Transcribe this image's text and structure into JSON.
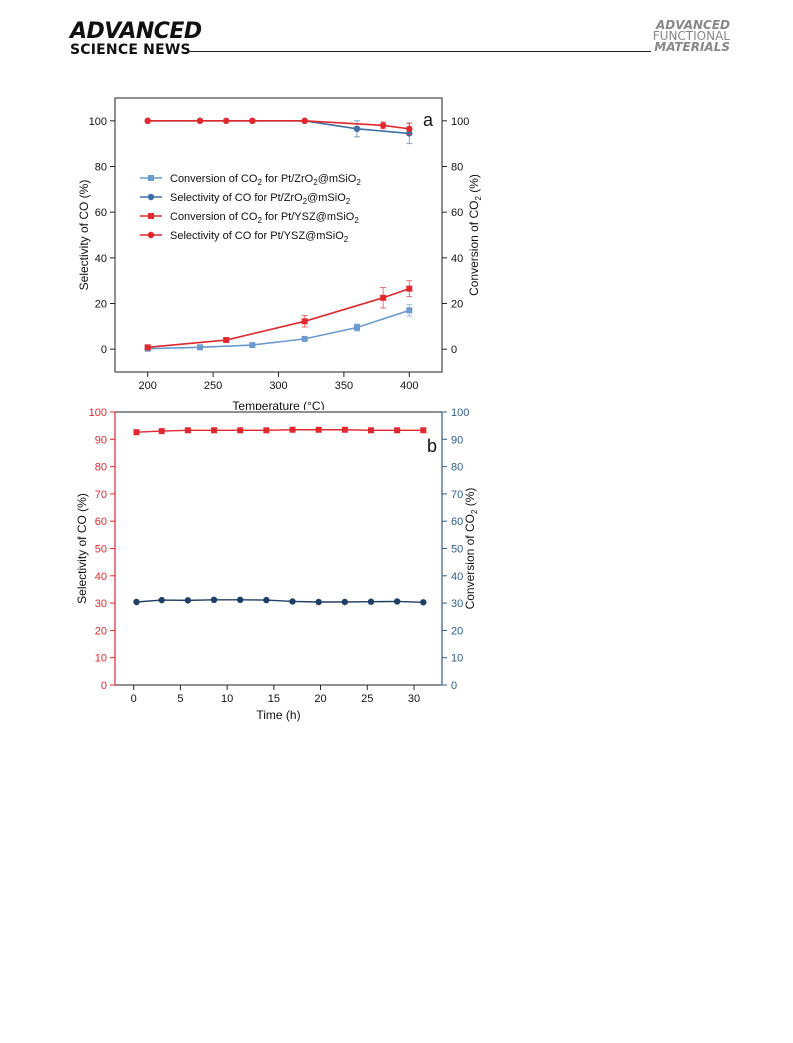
{
  "header": {
    "left_line1": "ADVANCED",
    "left_line2": "SCIENCE NEWS",
    "right_line1": "ADVANCED",
    "right_line2": "FUNCTIONAL",
    "right_line3": "MATERIALS"
  },
  "chart_data": [
    {
      "type": "line",
      "panel_label": "a",
      "xlabel": "Temperature (°C)",
      "ylabel": "Selectivity of CO (%)",
      "y2label": "Conversion of CO2 (%)",
      "xlim": [
        175,
        425
      ],
      "ylim": [
        -10,
        110
      ],
      "x_ticks": [
        200,
        250,
        300,
        350,
        400
      ],
      "y_ticks": [
        0,
        20,
        40,
        60,
        80,
        100
      ],
      "y2_ticks": [
        0,
        20,
        40,
        60,
        80,
        100
      ],
      "legend_position": "center-left",
      "series": [
        {
          "name": "Conversion of CO2 for Pt/ZrO2@mSiO2",
          "legend_parts": [
            [
              "Conversion of CO",
              false
            ],
            [
              "2",
              true
            ],
            [
              " for Pt/ZrO",
              false
            ],
            [
              "2",
              true
            ],
            [
              "@mSiO",
              false
            ],
            [
              "2",
              true
            ]
          ],
          "axis": "right",
          "marker": "square",
          "color": "#6b9ad0",
          "x": [
            200,
            240,
            280,
            320,
            360,
            400
          ],
          "y": [
            0.2,
            0.8,
            1.8,
            4.5,
            9.5,
            17.0
          ],
          "err": [
            0,
            0,
            0,
            0.5,
            1.5,
            2.5
          ]
        },
        {
          "name": "Selectivity of CO for Pt/ZrO2@mSiO2",
          "legend_parts": [
            [
              "Selectivity of CO for Pt/ZrO",
              false
            ],
            [
              "2",
              true
            ],
            [
              "@mSiO",
              false
            ],
            [
              "2",
              true
            ]
          ],
          "axis": "left",
          "marker": "circle",
          "color": "#3d6ea6",
          "x": [
            200,
            240,
            280,
            320,
            360,
            400
          ],
          "y": [
            100,
            100,
            100,
            100,
            96.5,
            94.5
          ],
          "err": [
            0,
            0,
            0,
            0,
            3.5,
            4.5
          ]
        },
        {
          "name": "Conversion of CO2 for Pt/YSZ@mSiO2",
          "legend_parts": [
            [
              "Conversion of CO",
              false
            ],
            [
              "2",
              true
            ],
            [
              " for Pt/YSZ@mSiO",
              false
            ],
            [
              "2",
              true
            ]
          ],
          "axis": "right",
          "marker": "square",
          "color": "#e0282e",
          "x": [
            200,
            260,
            320,
            380,
            400
          ],
          "y": [
            0.8,
            4.0,
            12.2,
            22.5,
            26.5
          ],
          "err": [
            0.5,
            0.5,
            2.5,
            4.5,
            3.5
          ]
        },
        {
          "name": "Selectivity of CO for Pt/YSZ@mSiO2",
          "legend_parts": [
            [
              "Selectivity of CO for Pt/YSZ@mSiO",
              false
            ],
            [
              "2",
              true
            ]
          ],
          "axis": "left",
          "marker": "circle",
          "color": "#e0282e",
          "x": [
            200,
            240,
            260,
            280,
            320,
            380,
            400
          ],
          "y": [
            100,
            100,
            100,
            100,
            100,
            98.0,
            96.5
          ],
          "err": [
            0,
            0,
            0,
            0,
            0,
            1.5,
            2.5
          ]
        }
      ]
    },
    {
      "type": "line",
      "panel_label": "b",
      "xlabel": "Time (h)",
      "ylabel": "Selectivity of CO (%)",
      "y2label": "Conversion of CO2 (%)",
      "xlim": [
        -2,
        33
      ],
      "ylim": [
        0,
        100
      ],
      "x_ticks": [
        0,
        5,
        10,
        15,
        20,
        25,
        30
      ],
      "y_ticks": [
        0,
        10,
        20,
        30,
        40,
        50,
        60,
        70,
        80,
        90,
        100
      ],
      "y2_ticks": [
        0,
        10,
        20,
        30,
        40,
        50,
        60,
        70,
        80,
        90,
        100
      ],
      "left_axis_color": "#e0282e",
      "right_axis_color": "#2f5d8a",
      "series": [
        {
          "axis": "left",
          "marker": "square",
          "color": "#e0282e",
          "x": [
            0.3,
            3.0,
            5.8,
            8.6,
            11.4,
            14.2,
            17.0,
            19.8,
            22.6,
            25.4,
            28.2,
            31.0
          ],
          "y": [
            92.6,
            93.0,
            93.3,
            93.3,
            93.3,
            93.3,
            93.5,
            93.5,
            93.5,
            93.3,
            93.3,
            93.3
          ]
        },
        {
          "axis": "right",
          "marker": "circle",
          "color": "#1f3f66",
          "x": [
            0.3,
            3.0,
            5.8,
            8.6,
            11.4,
            14.2,
            17.0,
            19.8,
            22.6,
            25.4,
            28.2,
            31.0
          ],
          "y": [
            30.4,
            31.1,
            31.0,
            31.2,
            31.2,
            31.1,
            30.6,
            30.4,
            30.4,
            30.5,
            30.6,
            30.3
          ]
        }
      ]
    }
  ]
}
